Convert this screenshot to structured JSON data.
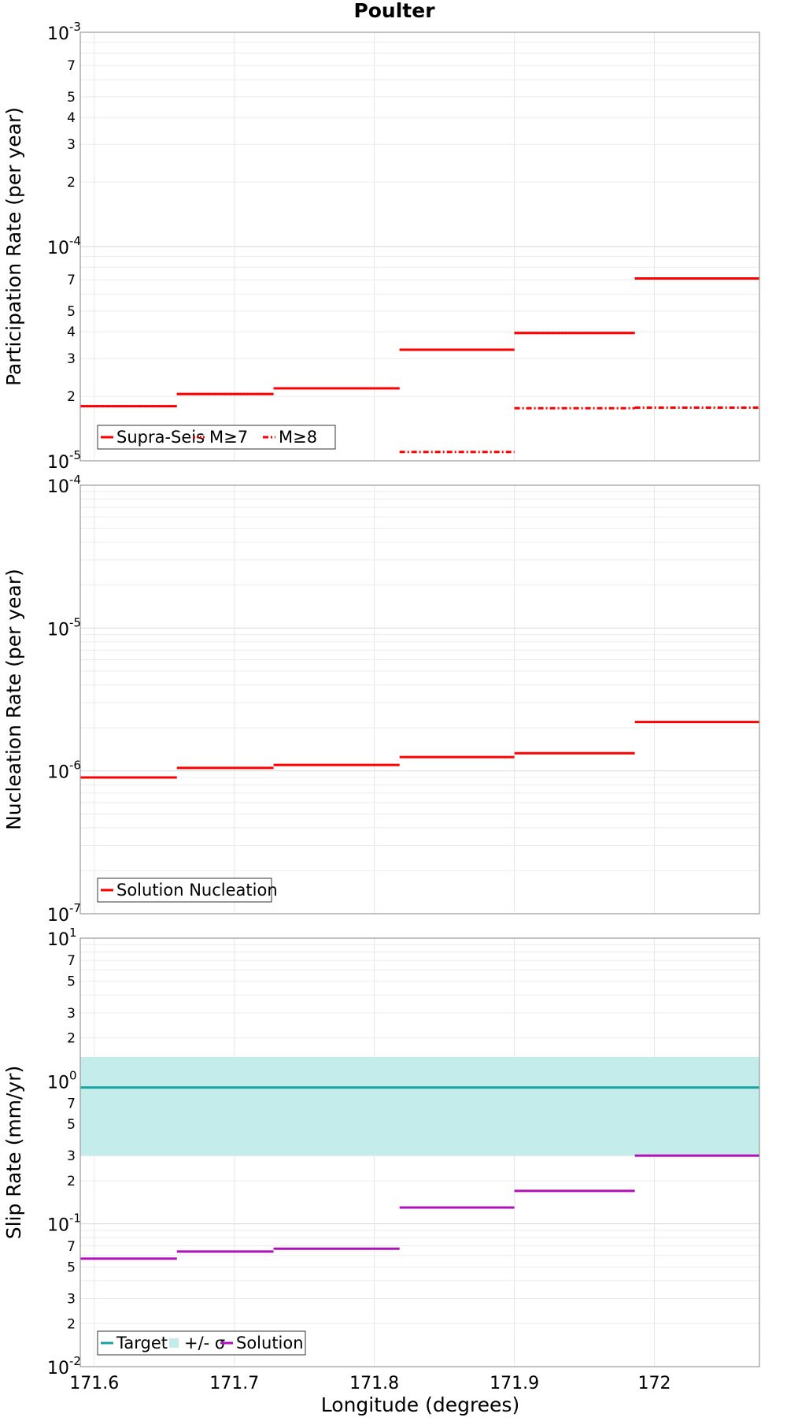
{
  "title": "Poulter",
  "xlabel": "Longitude (degrees)",
  "x_ticks": [
    "171.6",
    "171.7",
    "171.8",
    "171.9",
    "172"
  ],
  "chart_data": [
    {
      "type": "line",
      "ylabel": "Participation Rate (per year)",
      "yscale": "log",
      "ylim": [
        1e-05,
        0.001
      ],
      "xlim": [
        171.59,
        172.075
      ],
      "grid": true,
      "legend": "bottom-left",
      "series": [
        {
          "name": "Supra-Seis",
          "style": "solid",
          "color": "#ff0000",
          "segments": [
            [
              171.59,
              171.659,
              1.8e-05
            ],
            [
              171.659,
              171.728,
              2.05e-05
            ],
            [
              171.728,
              171.818,
              2.18e-05
            ],
            [
              171.818,
              171.9,
              3.3e-05
            ],
            [
              171.9,
              171.986,
              3.95e-05
            ],
            [
              171.986,
              172.075,
              7.1e-05
            ]
          ]
        },
        {
          "name": "M≥7",
          "style": "dotted",
          "color": "#ff0000",
          "segments": [
            [
              171.59,
              171.659,
              1.8e-05
            ],
            [
              171.659,
              171.728,
              2.05e-05
            ],
            [
              171.728,
              171.818,
              2.18e-05
            ],
            [
              171.818,
              171.9,
              3.3e-05
            ],
            [
              171.9,
              171.986,
              3.95e-05
            ],
            [
              171.986,
              172.075,
              7.1e-05
            ]
          ]
        },
        {
          "name": "M≥8",
          "style": "dashdot",
          "color": "#ff0000",
          "segments": [
            [
              171.818,
              171.9,
              1.1e-05
            ],
            [
              171.9,
              171.986,
              1.76e-05
            ],
            [
              171.986,
              172.075,
              1.77e-05
            ]
          ]
        }
      ]
    },
    {
      "type": "line",
      "ylabel": "Nucleation Rate (per year)",
      "yscale": "log",
      "ylim": [
        1e-07,
        0.0001
      ],
      "xlim": [
        171.59,
        172.075
      ],
      "grid": true,
      "legend": "bottom-left",
      "series": [
        {
          "name": "Solution Nucleation",
          "style": "solid",
          "color": "#ff0000",
          "segments": [
            [
              171.59,
              171.659,
              9e-07
            ],
            [
              171.659,
              171.728,
              1.05e-06
            ],
            [
              171.728,
              171.818,
              1.1e-06
            ],
            [
              171.818,
              171.9,
              1.25e-06
            ],
            [
              171.9,
              171.986,
              1.33e-06
            ],
            [
              171.986,
              172.075,
              2.2e-06
            ]
          ]
        }
      ]
    },
    {
      "type": "line",
      "ylabel": "Slip Rate (mm/yr)",
      "yscale": "log",
      "ylim": [
        0.01,
        10
      ],
      "xlim": [
        171.59,
        172.075
      ],
      "grid": true,
      "legend": "bottom-left",
      "band": {
        "name": "+/- σ",
        "color": "#c4ecea",
        "low": 0.3,
        "high": 1.47
      },
      "series": [
        {
          "name": "Target",
          "style": "solid",
          "color": "#1aa6a0",
          "segments": [
            [
              171.59,
              172.075,
              0.9
            ]
          ]
        },
        {
          "name": "Solution",
          "style": "solid",
          "color": "#b010b8",
          "segments": [
            [
              171.59,
              171.659,
              0.057
            ],
            [
              171.659,
              171.728,
              0.064
            ],
            [
              171.728,
              171.818,
              0.067
            ],
            [
              171.818,
              171.9,
              0.13
            ],
            [
              171.9,
              171.986,
              0.17
            ],
            [
              171.986,
              172.075,
              0.3
            ]
          ]
        }
      ]
    }
  ],
  "y_tick_labels": {
    "panel1": {
      "base_labels": [
        "10",
        "10",
        "10"
      ],
      "exponents": [
        "-5",
        "-4",
        "-3"
      ],
      "minor": [
        "2",
        "3",
        "4",
        "5",
        "7",
        "2",
        "3",
        "4",
        "5",
        "7"
      ]
    },
    "panel2": {
      "base_labels": [
        "10",
        "10",
        "10",
        "10"
      ],
      "exponents": [
        "-7",
        "-6",
        "-5",
        "-4"
      ]
    },
    "panel3": {
      "base_labels": [
        "10",
        "10",
        "10",
        "10"
      ],
      "exponents": [
        "-2",
        "-1",
        "0",
        "1"
      ],
      "minor": [
        "2",
        "3",
        "5",
        "7",
        "2",
        "3",
        "5",
        "7",
        "2",
        "3",
        "5",
        "7"
      ]
    }
  },
  "legends": {
    "panel1": [
      "Supra-Seis",
      "M≥7",
      "M≥8"
    ],
    "panel2": [
      "Solution Nucleation"
    ],
    "panel3": [
      "Target",
      "+/- σ",
      "Solution"
    ]
  }
}
